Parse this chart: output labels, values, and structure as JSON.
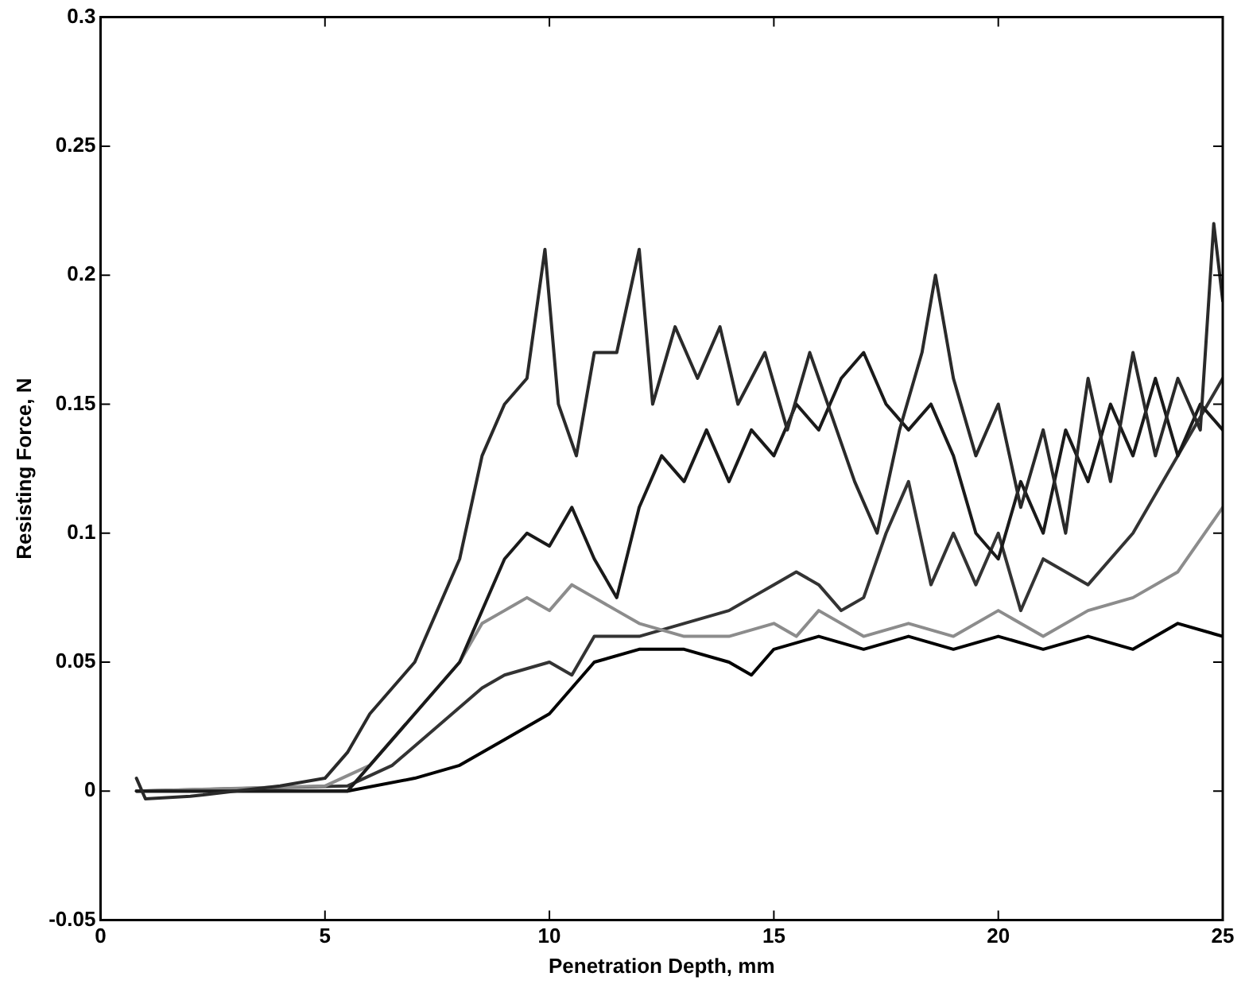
{
  "chart_data": {
    "type": "line",
    "xlabel": "Penetration Depth, mm",
    "ylabel": "Resisting Force, N",
    "xlim": [
      0,
      25
    ],
    "xticks": [
      0,
      5,
      10,
      15,
      20,
      25
    ],
    "ylim": [
      -0.05,
      0.3
    ],
    "yticks": [
      -0.05,
      0,
      0.05,
      0.1,
      0.15,
      0.2,
      0.25,
      0.3
    ],
    "grid": false,
    "legend": false,
    "marker": "none",
    "line_style": "solid",
    "series": [
      {
        "color": "#2a2a2a",
        "x": [
          0.8,
          1,
          2,
          3,
          4,
          5,
          5.5,
          6,
          6.5,
          7,
          7.5,
          8,
          8.5,
          9,
          9.5,
          9.9,
          10.2,
          10.6,
          11,
          11.5,
          12,
          12.3,
          12.8,
          13.3,
          13.8,
          14.2,
          14.8,
          15.3,
          15.8,
          16.2,
          16.8,
          17.3,
          17.8,
          18.3,
          18.6,
          19,
          19.5,
          20,
          20.5,
          21,
          21.5,
          22,
          22.5,
          23,
          23.5,
          24,
          24.5,
          24.8,
          25
        ],
        "values": [
          0.005,
          -0.003,
          -0.002,
          0,
          0.002,
          0.005,
          0.015,
          0.03,
          0.04,
          0.05,
          0.07,
          0.09,
          0.13,
          0.15,
          0.16,
          0.21,
          0.15,
          0.13,
          0.17,
          0.17,
          0.21,
          0.15,
          0.18,
          0.16,
          0.18,
          0.15,
          0.17,
          0.14,
          0.17,
          0.15,
          0.12,
          0.1,
          0.14,
          0.17,
          0.2,
          0.16,
          0.13,
          0.15,
          0.11,
          0.14,
          0.1,
          0.16,
          0.12,
          0.17,
          0.13,
          0.16,
          0.14,
          0.22,
          0.19
        ]
      },
      {
        "color": "#1a1a1a",
        "x": [
          0.8,
          5.5,
          7,
          8,
          8.5,
          9,
          9.5,
          10,
          10.5,
          11,
          11.5,
          12,
          12.5,
          13,
          13.5,
          14,
          14.5,
          15,
          15.5,
          16,
          16.5,
          17,
          17.5,
          18,
          18.5,
          19,
          19.5,
          20,
          20.5,
          21,
          21.5,
          22,
          22.5,
          23,
          23.5,
          24,
          24.5,
          25
        ],
        "values": [
          0,
          0,
          0.03,
          0.05,
          0.07,
          0.09,
          0.1,
          0.095,
          0.11,
          0.09,
          0.075,
          0.11,
          0.13,
          0.12,
          0.14,
          0.12,
          0.14,
          0.13,
          0.15,
          0.14,
          0.16,
          0.17,
          0.15,
          0.14,
          0.15,
          0.13,
          0.1,
          0.09,
          0.12,
          0.1,
          0.14,
          0.12,
          0.15,
          0.13,
          0.16,
          0.13,
          0.15,
          0.14
        ]
      },
      {
        "color": "#8c8c8c",
        "x": [
          0.8,
          5,
          6,
          7,
          8,
          8.5,
          9,
          9.5,
          10,
          10.5,
          11,
          11.5,
          12,
          13,
          14,
          15,
          15.5,
          16,
          17,
          18,
          19,
          20,
          21,
          22,
          23,
          24,
          25
        ],
        "values": [
          0,
          0.002,
          0.01,
          0.03,
          0.05,
          0.065,
          0.07,
          0.075,
          0.07,
          0.08,
          0.075,
          0.07,
          0.065,
          0.06,
          0.06,
          0.065,
          0.06,
          0.07,
          0.06,
          0.065,
          0.06,
          0.07,
          0.06,
          0.07,
          0.075,
          0.085,
          0.11
        ]
      },
      {
        "color": "#333333",
        "x": [
          0.8,
          5.5,
          6.5,
          7.5,
          8.5,
          9,
          10,
          10.5,
          11,
          12,
          13,
          14,
          14.5,
          15,
          15.5,
          16,
          16.5,
          17,
          17.5,
          18,
          18.5,
          19,
          19.5,
          20,
          20.5,
          21,
          22,
          23,
          24,
          25
        ],
        "values": [
          0,
          0.002,
          0.01,
          0.025,
          0.04,
          0.045,
          0.05,
          0.045,
          0.06,
          0.06,
          0.065,
          0.07,
          0.075,
          0.08,
          0.085,
          0.08,
          0.07,
          0.075,
          0.1,
          0.12,
          0.08,
          0.1,
          0.08,
          0.1,
          0.07,
          0.09,
          0.08,
          0.1,
          0.13,
          0.16
        ]
      },
      {
        "color": "#000000",
        "x": [
          0.8,
          5.5,
          7,
          8,
          9,
          10,
          10.5,
          11,
          12,
          13,
          14,
          14.5,
          15,
          16,
          17,
          18,
          19,
          20,
          21,
          22,
          23,
          24,
          25
        ],
        "values": [
          0,
          0,
          0.005,
          0.01,
          0.02,
          0.03,
          0.04,
          0.05,
          0.055,
          0.055,
          0.05,
          0.045,
          0.055,
          0.06,
          0.055,
          0.06,
          0.055,
          0.06,
          0.055,
          0.06,
          0.055,
          0.065,
          0.06
        ]
      }
    ]
  }
}
